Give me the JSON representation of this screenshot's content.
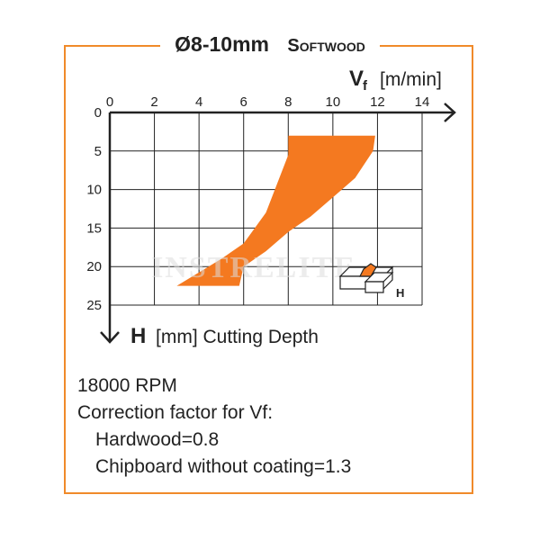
{
  "title": {
    "size": "Ø8-10mm",
    "material": "Softwood"
  },
  "chart_data": {
    "type": "area",
    "x_axis": {
      "label_main": "V",
      "label_sub": "f",
      "label_unit": "[m/min]",
      "ticks": [
        0,
        2,
        4,
        6,
        8,
        10,
        12,
        14
      ],
      "range": [
        0,
        14
      ]
    },
    "y_axis": {
      "label_main": "H",
      "label_rest": "[mm] Cutting Depth",
      "ticks": [
        0,
        5,
        10,
        15,
        20,
        25
      ],
      "range": [
        0,
        25
      ],
      "inverted": true
    },
    "grid": true,
    "region": [
      [
        8.0,
        3.0
      ],
      [
        11.9,
        3.0
      ],
      [
        11.8,
        5.0
      ],
      [
        11.0,
        8.5
      ],
      [
        10.0,
        11.0
      ],
      [
        9.0,
        13.5
      ],
      [
        8.0,
        15.5
      ],
      [
        7.0,
        18.0
      ],
      [
        6.0,
        20.0
      ],
      [
        5.8,
        22.5
      ],
      [
        3.0,
        22.5
      ],
      [
        5.0,
        19.0
      ],
      [
        6.0,
        17.0
      ],
      [
        7.0,
        13.0
      ],
      [
        8.0,
        5.5
      ]
    ],
    "region_color": "#f47920",
    "watermark": "INSTRELITE",
    "diagram_label": "H"
  },
  "notes": {
    "rpm": "18000 RPM",
    "correction": "Correction factor for Vf:",
    "hardwood": "Hardwood=0.8",
    "chipboard": "Chipboard without coating=1.3"
  },
  "colors": {
    "frame": "#f08a2a",
    "fill": "#f47920",
    "text": "#222222"
  }
}
